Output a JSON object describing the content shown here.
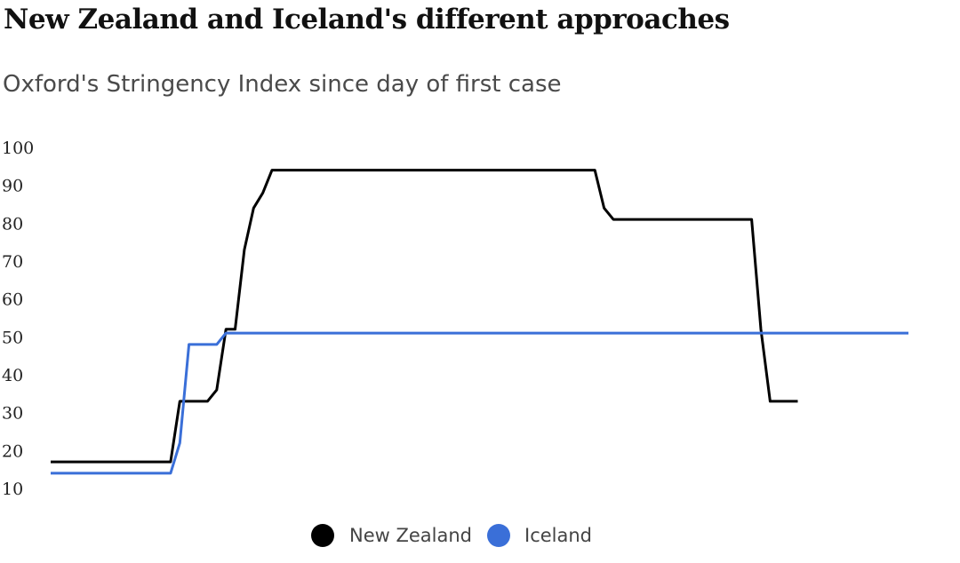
{
  "chart_data": {
    "type": "line",
    "title": "New Zealand and Iceland's different approaches",
    "subtitle": "Oxford's Stringency Index since day of first case",
    "xlabel": "",
    "ylabel": "",
    "ylim": [
      10,
      100
    ],
    "yticks": [
      100,
      90,
      80,
      70,
      60,
      50,
      40,
      30,
      20,
      10
    ],
    "grid": false,
    "legend_position": "bottom-center",
    "series": [
      {
        "name": "New Zealand",
        "color": "#000000",
        "x": [
          0,
          13,
          14,
          17,
          18,
          19,
          20,
          21,
          22,
          23,
          24,
          25,
          59,
          60,
          61,
          76,
          77,
          78,
          81
        ],
        "y": [
          17,
          17,
          33,
          33,
          36,
          52,
          52,
          73,
          84,
          88,
          94,
          94,
          94,
          84,
          81,
          81,
          52,
          33,
          33
        ]
      },
      {
        "name": "Iceland",
        "color": "#3a6fd8",
        "x": [
          0,
          13,
          14,
          15,
          18,
          19,
          20,
          93
        ],
        "y": [
          14,
          14,
          22,
          48,
          48,
          51,
          51,
          51
        ]
      }
    ]
  }
}
